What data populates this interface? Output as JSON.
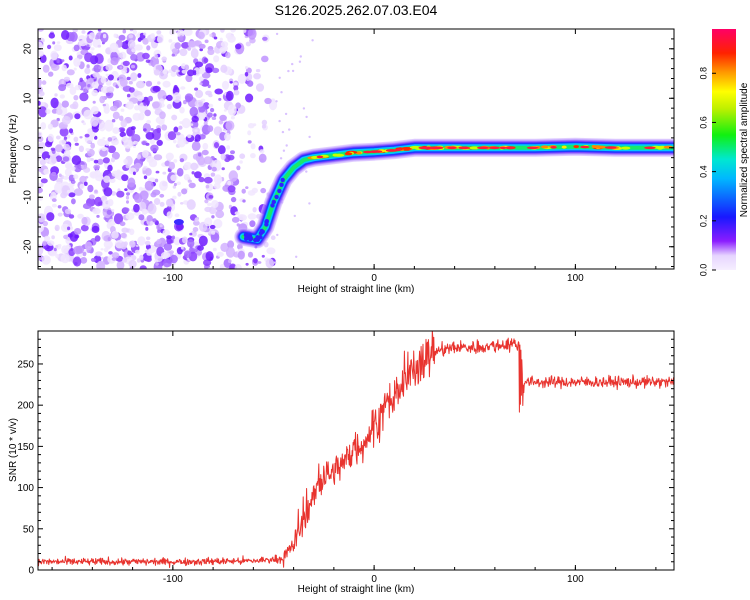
{
  "figure_title": "S126.2025.262.07.03.E04",
  "colors": {
    "snr_line": "#e8332e",
    "spectrum_scatter": "#7a2cf0",
    "track_core": "#e8332e"
  },
  "chart_data": [
    {
      "name": "spectrogram",
      "type": "heatmap",
      "title": "S126.2025.262.07.03.E04",
      "xlabel": "Height of straight line (km)",
      "ylabel": "Frequency (Hz)",
      "xlim": [
        -167,
        149
      ],
      "ylim": [
        -24.5,
        24
      ],
      "xticks": [
        -100,
        0,
        100
      ],
      "xtick_labels": [
        "-100",
        "0",
        "100"
      ],
      "yticks": [
        20,
        10,
        0,
        -10,
        -20
      ],
      "ytick_labels": [
        "20",
        "10",
        "0",
        "-10",
        "-20"
      ],
      "colorbar": {
        "label": "Normalized spectral amplitude",
        "range": [
          0.0,
          0.98
        ],
        "ticks": [
          0.0,
          0.2,
          0.4,
          0.6,
          0.8
        ],
        "tick_labels": [
          "0.0",
          "0.2",
          "0.4",
          "0.6",
          "0.8"
        ],
        "colormap": "rainbow (violet at 0 to magenta at 1)"
      },
      "track": {
        "x": [
          -65,
          -58,
          -54,
          -50,
          -45,
          -40,
          -35,
          -30,
          -20,
          -10,
          0,
          10,
          20,
          40,
          60,
          80,
          100,
          120,
          149
        ],
        "frequency": [
          -18,
          -18.5,
          -16,
          -11,
          -6.5,
          -4,
          -2.5,
          -2,
          -1.5,
          -1,
          -0.8,
          -0.5,
          0,
          0,
          0,
          0,
          0.2,
          0,
          0
        ]
      },
      "noise_region_x": [
        -167,
        -50
      ]
    },
    {
      "name": "snr",
      "type": "line",
      "xlabel": "Height of straight line (km)",
      "ylabel": "SNR (10 * v/v)",
      "xlim": [
        -167,
        149
      ],
      "ylim": [
        0,
        290
      ],
      "xticks": [
        -100,
        0,
        100
      ],
      "xtick_labels": [
        "-100",
        "0",
        "100"
      ],
      "yticks": [
        0,
        50,
        100,
        150,
        200,
        250
      ],
      "ytick_labels": [
        "0",
        "50",
        "100",
        "150",
        "200",
        "250"
      ],
      "series": [
        {
          "name": "SNR",
          "color": "#e8332e",
          "x": [
            -167,
            -100,
            -60,
            -45,
            -40,
            -35,
            -30,
            -25,
            -20,
            -15,
            -10,
            -5,
            0,
            5,
            10,
            15,
            20,
            25,
            30,
            40,
            50,
            60,
            70,
            73,
            74,
            80,
            100,
            120,
            149
          ],
          "y": [
            10,
            10,
            11,
            14,
            30,
            60,
            90,
            110,
            120,
            130,
            145,
            155,
            175,
            195,
            210,
            225,
            245,
            258,
            265,
            270,
            270,
            272,
            275,
            270,
            228,
            228,
            228,
            228,
            228
          ]
        }
      ]
    }
  ]
}
